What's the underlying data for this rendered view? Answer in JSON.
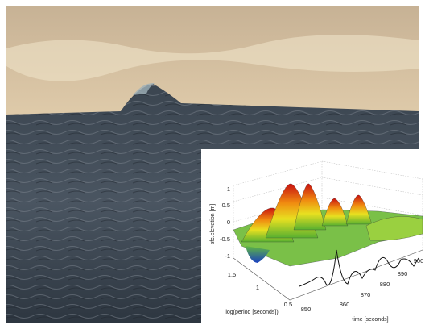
{
  "inset": {
    "z_axis": {
      "label": "sfc.elevation [m]",
      "ticks": [
        1,
        0.5,
        0,
        -0.5,
        -1
      ]
    },
    "y_axis": {
      "label": "log(period [seconds])",
      "ticks": [
        1.5,
        1,
        0.5
      ]
    },
    "x_axis": {
      "label": "time [seconds]",
      "ticks": [
        850,
        860,
        870,
        880,
        890,
        900
      ]
    }
  }
}
